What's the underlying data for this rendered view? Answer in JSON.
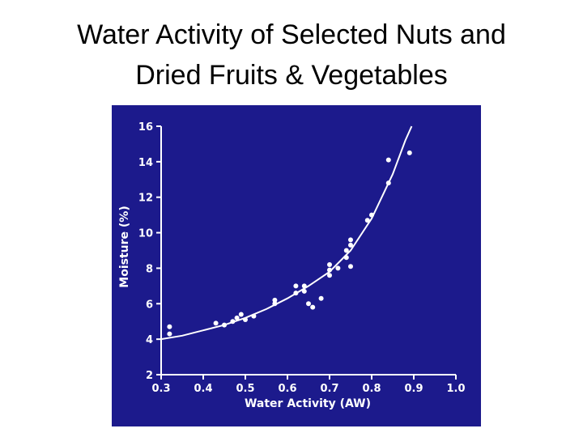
{
  "chart_data": {
    "type": "scatter",
    "title": [
      "Water Activity of Selected Nuts and",
      "Dried Fruits & Vegetables"
    ],
    "x_label": "Water Activity (AW)",
    "y_label": "Moisture (%)",
    "xlim": [
      0.3,
      1.0
    ],
    "ylim": [
      2,
      16
    ],
    "xticks": [
      0.3,
      0.4,
      0.5,
      0.6,
      0.7,
      0.8,
      0.9,
      {
        "value": 1.0,
        "label": "1.0"
      }
    ],
    "yticks": [
      2,
      4,
      6,
      8,
      10,
      12,
      14,
      16
    ],
    "color": "#ffffff",
    "background": "#1c1a8c",
    "points": {
      "x": [
        0.32,
        0.32,
        0.43,
        0.45,
        0.47,
        0.48,
        0.49,
        0.5,
        0.52,
        0.57,
        0.57,
        0.62,
        0.62,
        0.64,
        0.64,
        0.65,
        0.66,
        0.68,
        0.7,
        0.7,
        0.7,
        0.72,
        0.74,
        0.74,
        0.75,
        0.75,
        0.75,
        0.79,
        0.8,
        0.84,
        0.84,
        0.89
      ],
      "y": [
        4.7,
        4.3,
        4.9,
        4.8,
        5.0,
        5.2,
        5.4,
        5.1,
        5.3,
        6.0,
        6.2,
        6.6,
        7.0,
        6.7,
        7.0,
        6.0,
        5.8,
        6.3,
        7.6,
        7.9,
        8.2,
        8.0,
        8.6,
        9.0,
        9.3,
        9.6,
        8.1,
        10.7,
        11.0,
        12.8,
        14.1,
        14.5
      ]
    },
    "fit_curve": {
      "x": [
        0.3,
        0.35,
        0.4,
        0.45,
        0.5,
        0.55,
        0.6,
        0.65,
        0.7,
        0.75,
        0.8,
        0.85,
        0.88,
        0.895
      ],
      "y": [
        4.0,
        4.2,
        4.5,
        4.8,
        5.2,
        5.7,
        6.3,
        7.0,
        7.8,
        9.0,
        10.8,
        13.3,
        15.2,
        16
      ]
    }
  }
}
